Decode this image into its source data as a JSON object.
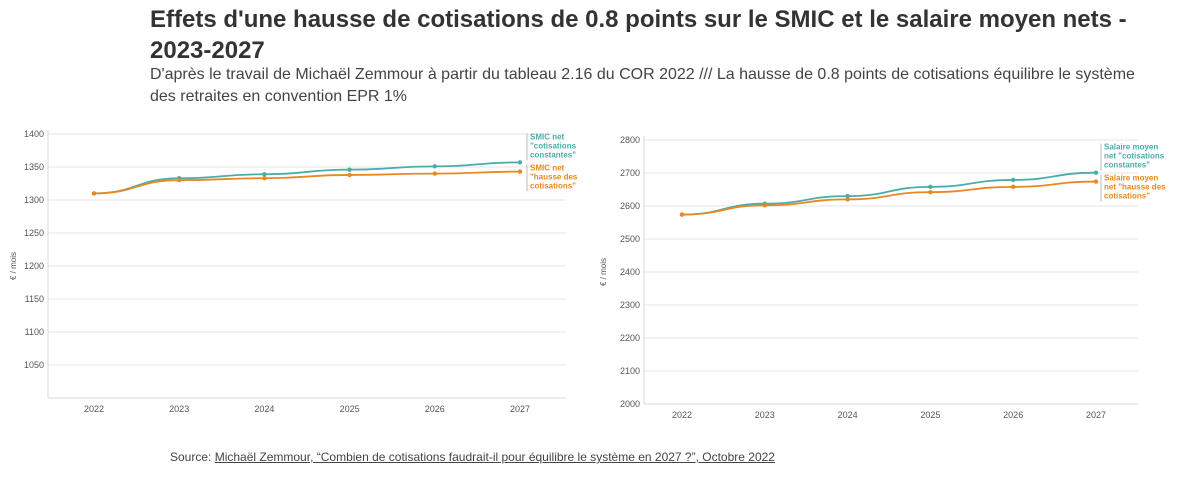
{
  "title": "Effets d'une hausse de cotisations de 0.8 points sur le SMIC et le salaire moyen nets - 2023-2027",
  "subtitle": "D'après le travail de Michaël Zemmour à partir du tableau 2.16 du COR 2022 /// La hausse de 0.8 points de cotisations équilibre le système des retraites en convention EPR 1%",
  "source": {
    "prefix": "Source: ",
    "link_text": "Michaël Zemmour, “Combien de cotisations faudrait-il pour équilibre le système en 2027 ?”, Octobre 2022"
  },
  "colors": {
    "teal": "#4aacab",
    "orange": "#e8881f",
    "grid": "#e6e6e6"
  },
  "chart_data": [
    {
      "type": "line",
      "ylabel": "€ / mois",
      "ylim": [
        1000,
        1400
      ],
      "yticks": [
        1050,
        1100,
        1150,
        1200,
        1250,
        1300,
        1350,
        1400
      ],
      "x": [
        2022,
        2023,
        2024,
        2025,
        2026,
        2027
      ],
      "grid": true,
      "legend": "right",
      "series": [
        {
          "name": [
            "SMIC net",
            "\"cotisations",
            "constantes\""
          ],
          "color": "#4aacab",
          "values": [
            1310,
            1333,
            1339,
            1346,
            1351,
            1357
          ]
        },
        {
          "name": [
            "SMIC net",
            "\"hausse des",
            "cotisations\""
          ],
          "color": "#e8881f",
          "values": [
            1310,
            1330,
            1333,
            1338,
            1340,
            1343
          ]
        }
      ]
    },
    {
      "type": "line",
      "ylabel": "€ / mois",
      "ylim": [
        2000,
        2800
      ],
      "yticks": [
        2000,
        2100,
        2200,
        2300,
        2400,
        2500,
        2600,
        2700,
        2800
      ],
      "x": [
        2022,
        2023,
        2024,
        2025,
        2026,
        2027
      ],
      "grid": true,
      "legend": "right",
      "series": [
        {
          "name": [
            "Salaire moyen",
            "net \"cotisations",
            "constantes\""
          ],
          "color": "#4aacab",
          "values": [
            2574,
            2607,
            2630,
            2658,
            2679,
            2701
          ]
        },
        {
          "name": [
            "Salaire moyen",
            "net \"hausse des",
            "cotisations\""
          ],
          "color": "#e8881f",
          "values": [
            2574,
            2602,
            2620,
            2642,
            2658,
            2674
          ]
        }
      ]
    }
  ]
}
